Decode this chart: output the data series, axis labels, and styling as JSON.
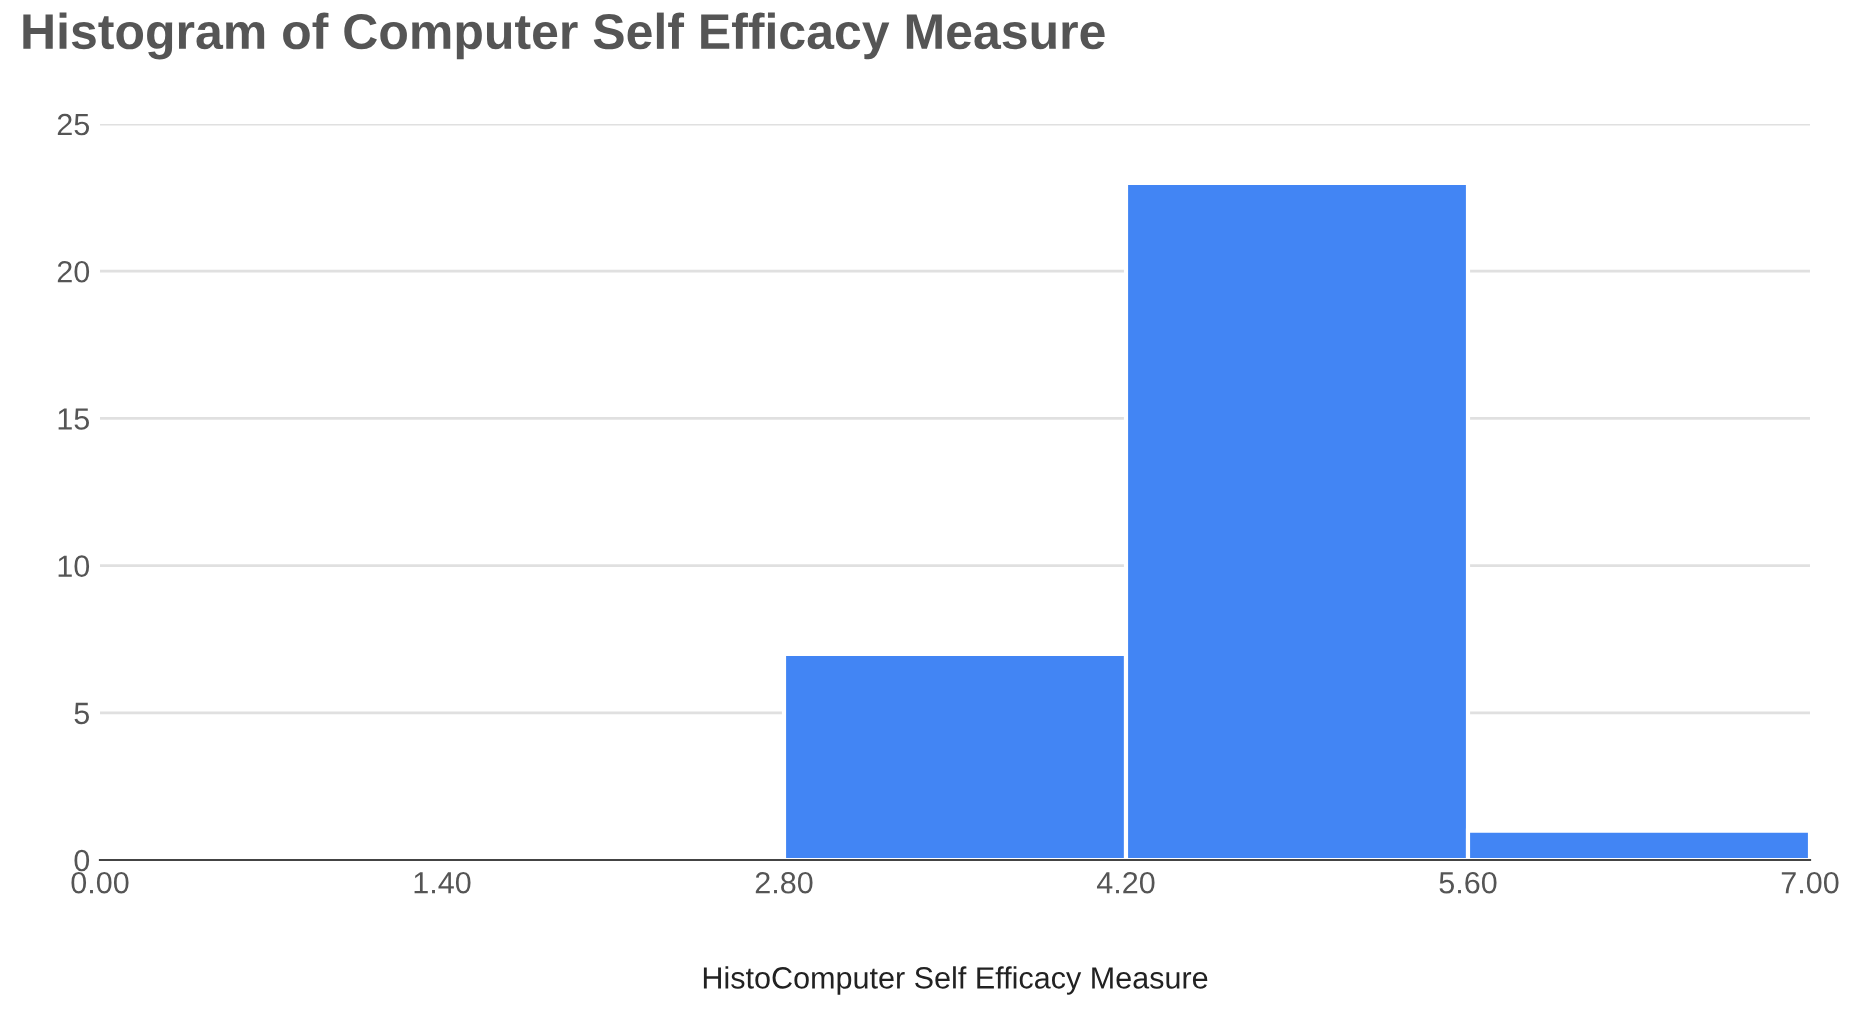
{
  "chart_data": {
    "type": "histogram",
    "title": "Histogram of Computer Self Efficacy Measure",
    "xlabel": "HistoComputer Self Efficacy Measure",
    "bins": [
      0,
      1.4,
      2.8,
      4.2,
      5.6,
      7.0
    ],
    "values": [
      0,
      0,
      7,
      23,
      1
    ],
    "color": "#4285f4",
    "xlim": [
      0,
      7.0
    ],
    "xticks": [
      {
        "value": 0,
        "label": "0.00"
      },
      {
        "value": 1.4,
        "label": "1.40"
      },
      {
        "value": 2.8,
        "label": "2.80"
      },
      {
        "value": 4.2,
        "label": "4.20"
      },
      {
        "value": 5.6,
        "label": "5.60"
      },
      {
        "value": 7.0,
        "label": "7.00"
      }
    ],
    "ylim": [
      0,
      25
    ],
    "yticks": [
      0,
      5,
      10,
      15,
      20,
      25
    ],
    "grid": "y"
  }
}
